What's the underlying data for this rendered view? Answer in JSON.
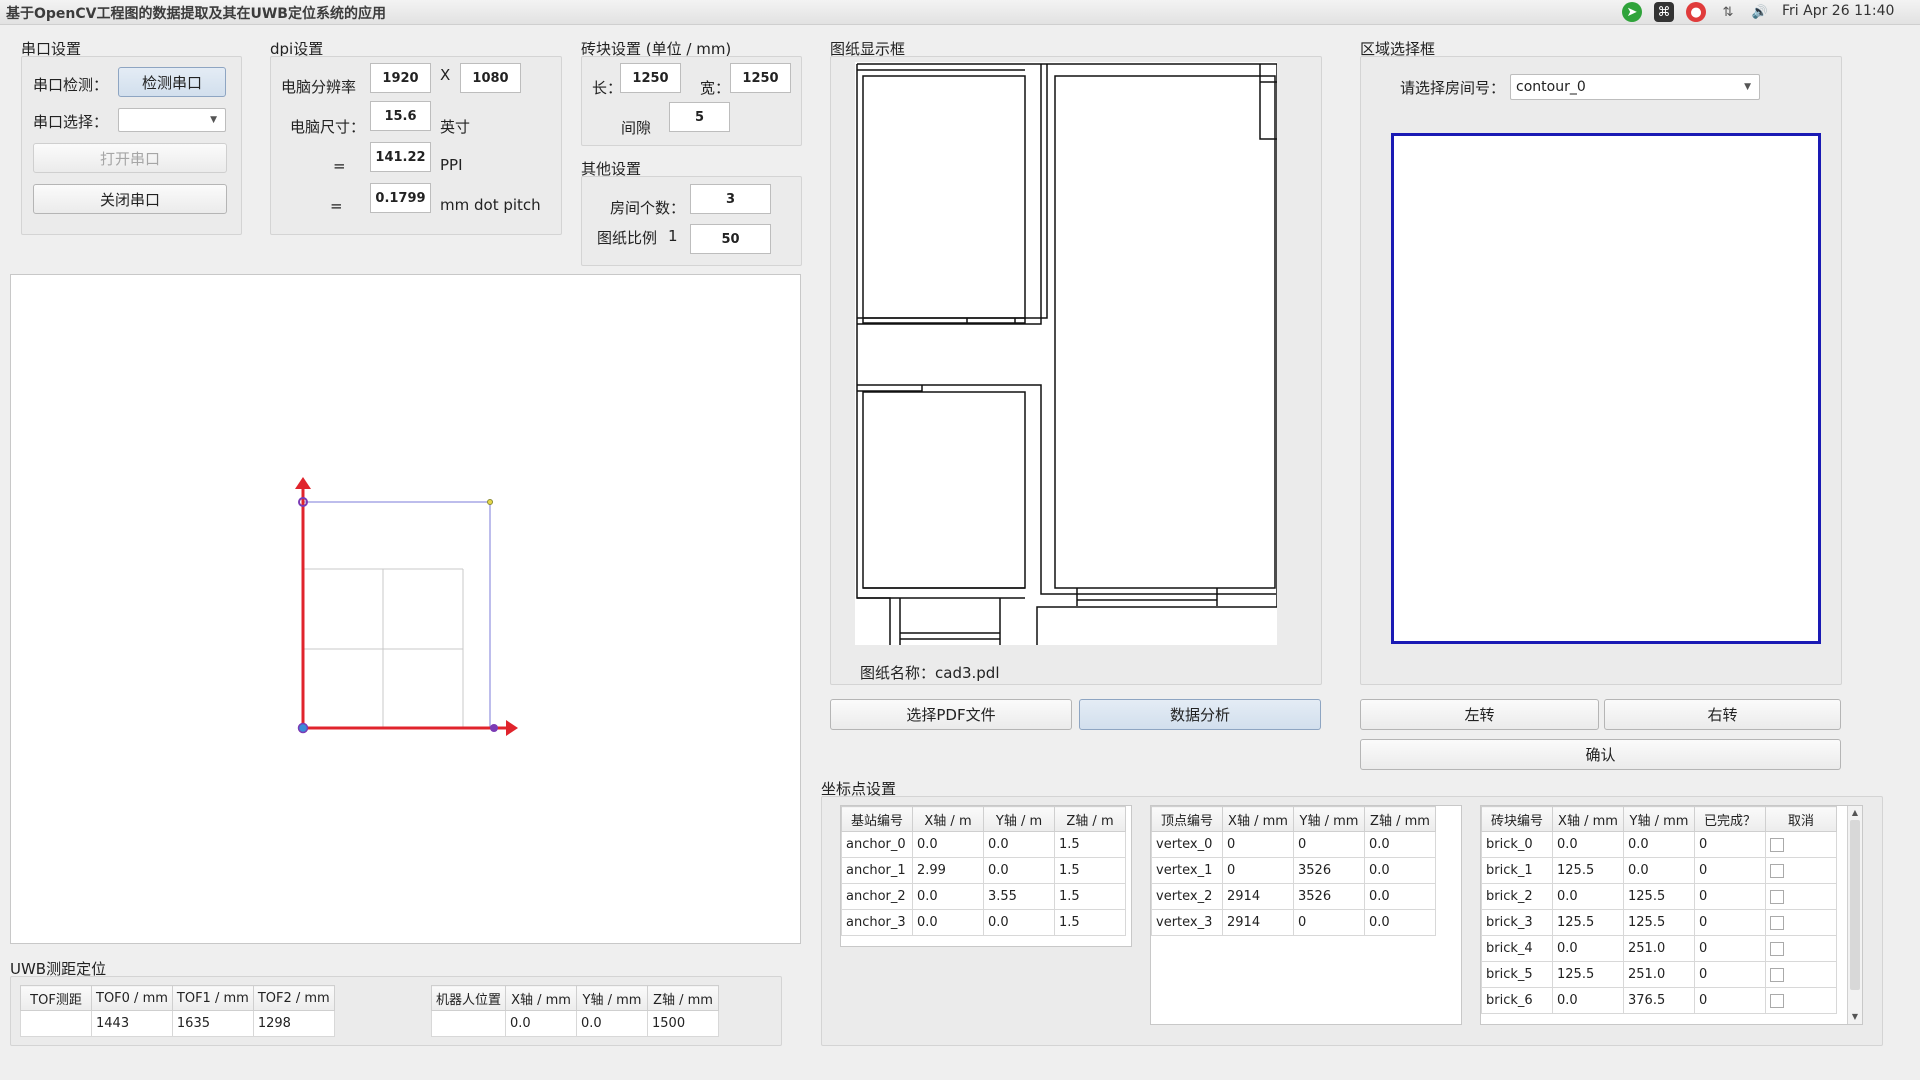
{
  "window": {
    "title": "基于OpenCV工程图的数据提取及其在UWB定位系统的应用"
  },
  "tray": {
    "icons": [
      "telegram-icon",
      "command-icon",
      "record-icon",
      "network-icon",
      "volume-icon",
      "apple-icon"
    ],
    "clock": "Fri Apr 26 11:40",
    "colors": {
      "telegram": "#2fa33a",
      "command": "#333333",
      "record": "#e03b3b"
    }
  },
  "serial": {
    "title": "串口设置",
    "detect_label": "串口检测：",
    "detect_button": "检测串口",
    "select_label": "串口选择：",
    "select_value": "",
    "open_button": "打开串口",
    "close_button": "关闭串口"
  },
  "dpi": {
    "title": "dpi设置",
    "resolution_label": "电脑分辨率",
    "res_w": "1920",
    "x_label": "X",
    "res_h": "1080",
    "size_label": "电脑尺寸：",
    "size_value": "15.6",
    "size_unit": "英寸",
    "eq1": "=",
    "ppi_value": "141.22",
    "ppi_unit": "PPI",
    "eq2": "=",
    "pitch_value": "0.1799",
    "pitch_unit": "mm dot pitch"
  },
  "brick": {
    "title": "砖块设置 (单位 / mm)",
    "length_label": "长：",
    "length_value": "1250",
    "width_label": "宽：",
    "width_value": "1250",
    "gap_label": "间隙",
    "gap_value": "5"
  },
  "other": {
    "title": "其他设置",
    "rooms_label": "房间个数：",
    "rooms_value": "3",
    "scale_label": "图纸比例",
    "scale_one": "1",
    "scale_value": "50"
  },
  "drawing": {
    "title": "图纸显示框",
    "name_label": "图纸名称：cad3.pdl",
    "select_pdf_button": "选择PDF文件",
    "analyze_button": "数据分析"
  },
  "region": {
    "title": "区域选择框",
    "room_label": "请选择房间号：",
    "room_value": "contour_0",
    "rotate_left": "左转",
    "rotate_right": "右转",
    "confirm": "确认",
    "border_color": "#1a1ab4"
  },
  "uwb": {
    "title": "UWB测距定位",
    "tof_headers": [
      "TOF测距",
      "TOF0 / mm",
      "TOF1 / mm",
      "TOF2 / mm"
    ],
    "tof_values": [
      "",
      "1443",
      "1635",
      "1298"
    ],
    "robot_headers": [
      "机器人位置",
      "X轴 / mm",
      "Y轴 / mm",
      "Z轴 / mm"
    ],
    "robot_values": [
      "",
      "0.0",
      "0.0",
      "1500"
    ]
  },
  "coords": {
    "title": "坐标点设置",
    "anchor_headers": [
      "基站编号",
      "X轴 / m",
      "Y轴 / m",
      "Z轴 / m"
    ],
    "anchors": [
      [
        "anchor_0",
        "0.0",
        "0.0",
        "1.5"
      ],
      [
        "anchor_1",
        "2.99",
        "0.0",
        "1.5"
      ],
      [
        "anchor_2",
        "0.0",
        "3.55",
        "1.5"
      ],
      [
        "anchor_3",
        "0.0",
        "0.0",
        "1.5"
      ]
    ],
    "vertex_headers": [
      "顶点编号",
      "X轴 / mm",
      "Y轴 / mm",
      "Z轴 / mm"
    ],
    "vertices": [
      [
        "vertex_0",
        "0",
        "0",
        "0.0"
      ],
      [
        "vertex_1",
        "0",
        "3526",
        "0.0"
      ],
      [
        "vertex_2",
        "2914",
        "3526",
        "0.0"
      ],
      [
        "vertex_3",
        "2914",
        "0",
        "0.0"
      ]
    ],
    "brick_headers": [
      "砖块编号",
      "X轴 / mm",
      "Y轴 / mm",
      "已完成？",
      "取消"
    ],
    "bricks": [
      [
        "brick_0",
        "0.0",
        "0.0",
        "0"
      ],
      [
        "brick_1",
        "125.5",
        "0.0",
        "0"
      ],
      [
        "brick_2",
        "0.0",
        "125.5",
        "0"
      ],
      [
        "brick_3",
        "125.5",
        "125.5",
        "0"
      ],
      [
        "brick_4",
        "0.0",
        "251.0",
        "0"
      ],
      [
        "brick_5",
        "125.5",
        "251.0",
        "0"
      ],
      [
        "brick_6",
        "0.0",
        "376.5",
        "0"
      ]
    ]
  },
  "colors": {
    "axis": "#e0242c",
    "outline": "#7b7bd8",
    "brick_grid": "#c8c8c8"
  }
}
